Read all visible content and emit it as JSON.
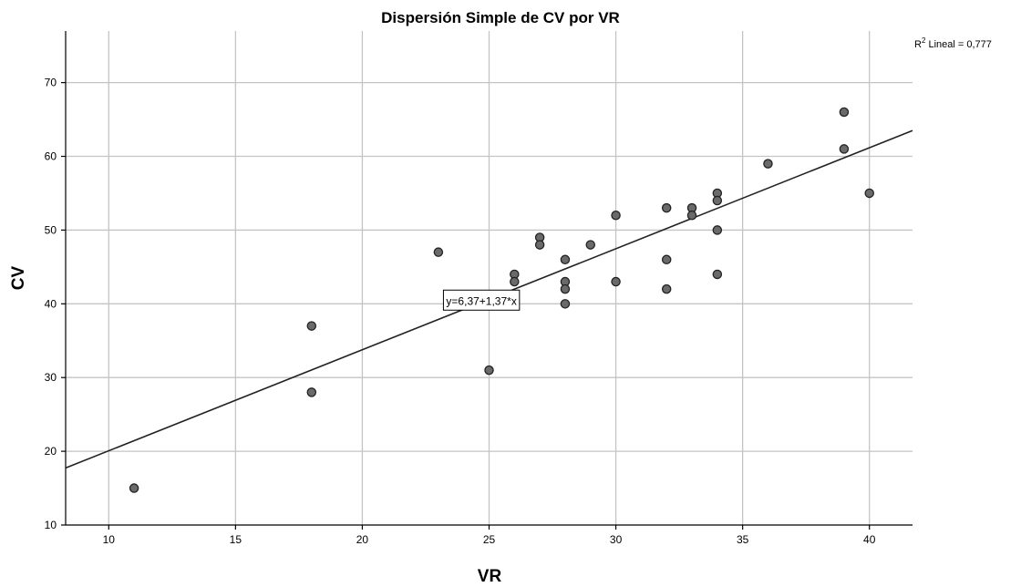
{
  "chart_data": {
    "type": "scatter",
    "title": "Dispersión Simple de CV por VR",
    "xlabel": "VR",
    "ylabel": "CV",
    "xlim": [
      8.3,
      41.7
    ],
    "ylim": [
      10,
      77
    ],
    "xticks": [
      10,
      15,
      20,
      25,
      30,
      35,
      40
    ],
    "yticks": [
      10,
      20,
      30,
      40,
      50,
      60,
      70
    ],
    "grid": true,
    "points": [
      {
        "x": 11,
        "y": 15
      },
      {
        "x": 18,
        "y": 37
      },
      {
        "x": 18,
        "y": 28
      },
      {
        "x": 23,
        "y": 47
      },
      {
        "x": 25,
        "y": 31
      },
      {
        "x": 26,
        "y": 44
      },
      {
        "x": 26,
        "y": 43
      },
      {
        "x": 27,
        "y": 49
      },
      {
        "x": 27,
        "y": 48
      },
      {
        "x": 28,
        "y": 46
      },
      {
        "x": 28,
        "y": 43
      },
      {
        "x": 28,
        "y": 42
      },
      {
        "x": 28,
        "y": 40
      },
      {
        "x": 29,
        "y": 48
      },
      {
        "x": 30,
        "y": 52
      },
      {
        "x": 30,
        "y": 43
      },
      {
        "x": 32,
        "y": 53
      },
      {
        "x": 32,
        "y": 46
      },
      {
        "x": 32,
        "y": 42
      },
      {
        "x": 33,
        "y": 53
      },
      {
        "x": 33,
        "y": 52
      },
      {
        "x": 34,
        "y": 55
      },
      {
        "x": 34,
        "y": 54
      },
      {
        "x": 34,
        "y": 50
      },
      {
        "x": 34,
        "y": 44
      },
      {
        "x": 36,
        "y": 59
      },
      {
        "x": 39,
        "y": 66
      },
      {
        "x": 39,
        "y": 61
      },
      {
        "x": 40,
        "y": 55
      }
    ],
    "fit_line": {
      "intercept": 6.37,
      "slope": 1.37
    },
    "equation_label": "y=6,37+1,37*x",
    "equation_anchor": {
      "x": 23.2,
      "y": 40.5
    },
    "r2_label": {
      "prefix": "R",
      "sup": "2",
      "text": " Lineal = 0,777"
    },
    "colors": {
      "point_fill": "#6a6a6a",
      "point_stroke": "#222222",
      "grid": "#c4c4c4"
    }
  }
}
